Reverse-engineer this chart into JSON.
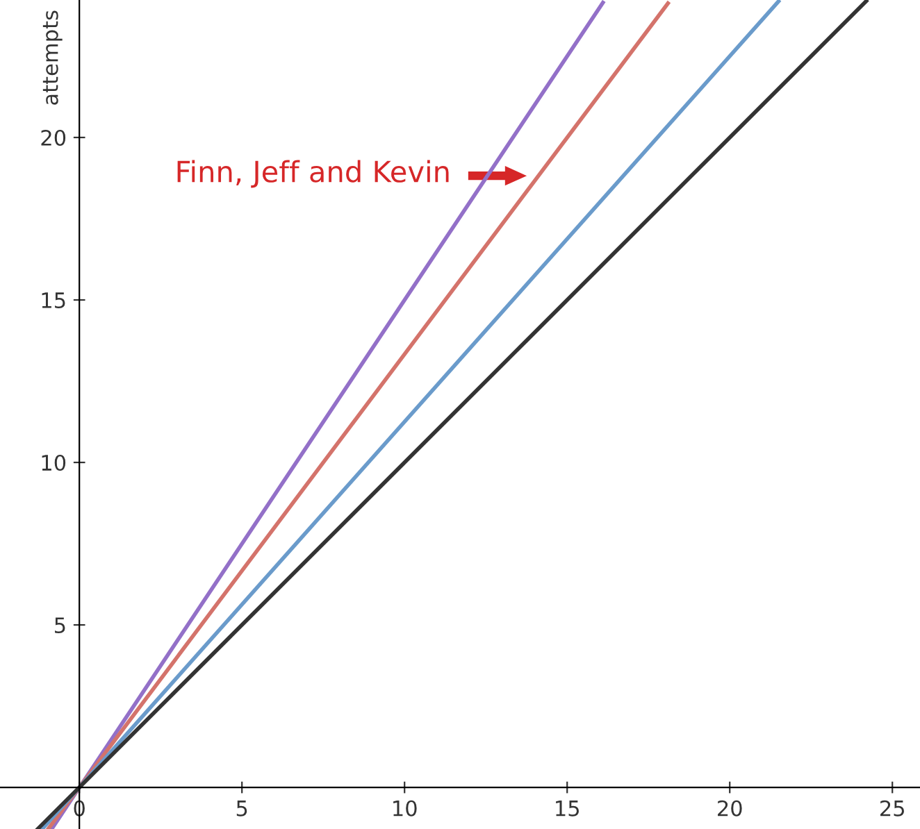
{
  "chart_data": {
    "type": "line",
    "ylabel": "attempts",
    "xlim": [
      -2.44,
      25.85
    ],
    "ylim": [
      -1.28,
      24.23
    ],
    "xticks": [
      0,
      5,
      10,
      15,
      20,
      25
    ],
    "yticks": [
      5,
      10,
      15,
      20
    ],
    "grid": false,
    "marker": "none",
    "line_style": "solid",
    "series": [
      {
        "color": "#9370c8",
        "x": [
          -0.85,
          16.1
        ],
        "values": [
          -1.28,
          24.15
        ]
      },
      {
        "color": "#d4736b",
        "x": [
          -0.96,
          18.1
        ],
        "values": [
          -1.28,
          24.13
        ]
      },
      {
        "color": "#6a9bcb",
        "x": [
          -1.14,
          21.5
        ],
        "values": [
          -1.28,
          24.19
        ]
      },
      {
        "color": "#333333",
        "x": [
          -1.28,
          24.2
        ],
        "values": [
          -1.28,
          24.2
        ]
      }
    ],
    "annotations": [
      "Finn, Jeff and Kevin"
    ]
  }
}
